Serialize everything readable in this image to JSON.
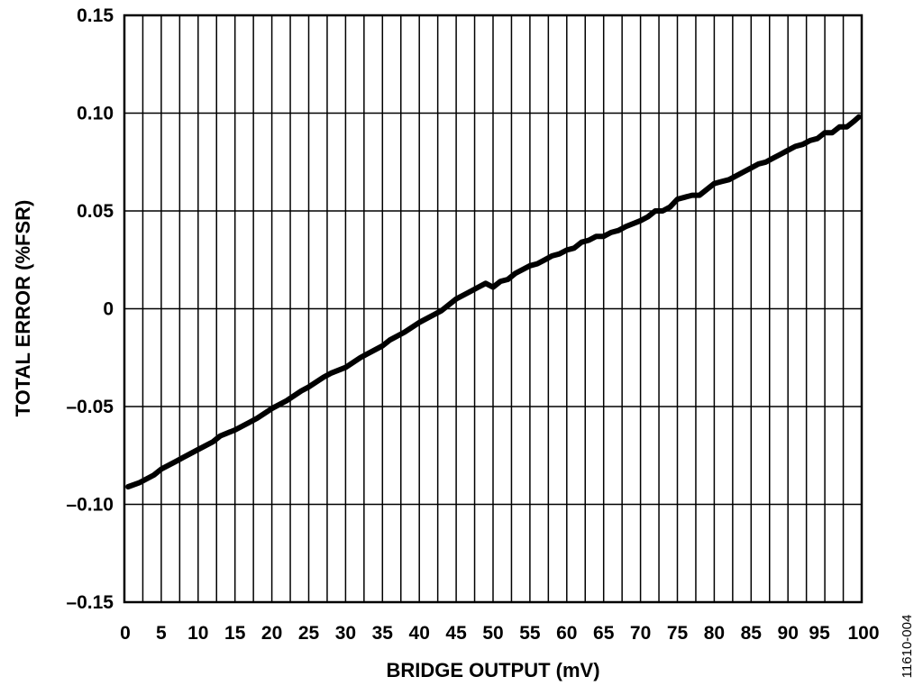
{
  "chart_data": {
    "type": "line",
    "xlabel": "BRIDGE OUTPUT (mV)",
    "ylabel": "TOTAL ERROR (%FSR)",
    "xlim": [
      0,
      100
    ],
    "ylim": [
      -0.15,
      0.15
    ],
    "x_ticks": [
      0,
      5,
      10,
      15,
      20,
      25,
      30,
      35,
      40,
      45,
      50,
      55,
      60,
      65,
      70,
      75,
      80,
      85,
      90,
      95,
      100
    ],
    "x_tick_labels": [
      "0",
      "5",
      "10",
      "15",
      "20",
      "25",
      "30",
      "35",
      "40",
      "45",
      "50",
      "55",
      "60",
      "65",
      "70",
      "75",
      "80",
      "85",
      "90",
      "95",
      "100"
    ],
    "y_ticks": [
      -0.15,
      -0.1,
      -0.05,
      0,
      0.05,
      0.1,
      0.15
    ],
    "y_tick_labels": [
      "–0.15",
      "–0.10",
      "–0.05",
      "0",
      "0.05",
      "0.10",
      "0.15"
    ],
    "grid": true,
    "line_color": "#000000",
    "series": [
      {
        "x": [
          0.5,
          2,
          4,
          5,
          7,
          8,
          10,
          12,
          13,
          15,
          17,
          18,
          20,
          22,
          24,
          25,
          27,
          28,
          30,
          32,
          33,
          35,
          36,
          38,
          40,
          42,
          43,
          45,
          47,
          48,
          49,
          50,
          51,
          52,
          53,
          55,
          56,
          57,
          58,
          59,
          60,
          61,
          62,
          63,
          64,
          65,
          66,
          67,
          68,
          70,
          71,
          72,
          73,
          74,
          75,
          76,
          77,
          78,
          79,
          80,
          81,
          82,
          84,
          85,
          86,
          87,
          88,
          89,
          90,
          91,
          92,
          93,
          94,
          95,
          96,
          97,
          98,
          99,
          99.6
        ],
        "y": [
          -0.091,
          -0.089,
          -0.085,
          -0.082,
          -0.078,
          -0.076,
          -0.072,
          -0.068,
          -0.065,
          -0.062,
          -0.058,
          -0.056,
          -0.051,
          -0.047,
          -0.042,
          -0.04,
          -0.035,
          -0.033,
          -0.03,
          -0.025,
          -0.023,
          -0.019,
          -0.016,
          -0.012,
          -0.007,
          -0.003,
          -0.001,
          0.005,
          0.009,
          0.011,
          0.013,
          0.011,
          0.014,
          0.015,
          0.018,
          0.022,
          0.023,
          0.025,
          0.027,
          0.028,
          0.03,
          0.031,
          0.034,
          0.035,
          0.037,
          0.037,
          0.039,
          0.04,
          0.042,
          0.045,
          0.047,
          0.05,
          0.05,
          0.052,
          0.056,
          0.057,
          0.058,
          0.058,
          0.061,
          0.064,
          0.065,
          0.066,
          0.07,
          0.072,
          0.074,
          0.075,
          0.077,
          0.079,
          0.081,
          0.083,
          0.084,
          0.086,
          0.087,
          0.09,
          0.09,
          0.093,
          0.093,
          0.096,
          0.098
        ]
      }
    ]
  },
  "figure_id": "11610-004"
}
